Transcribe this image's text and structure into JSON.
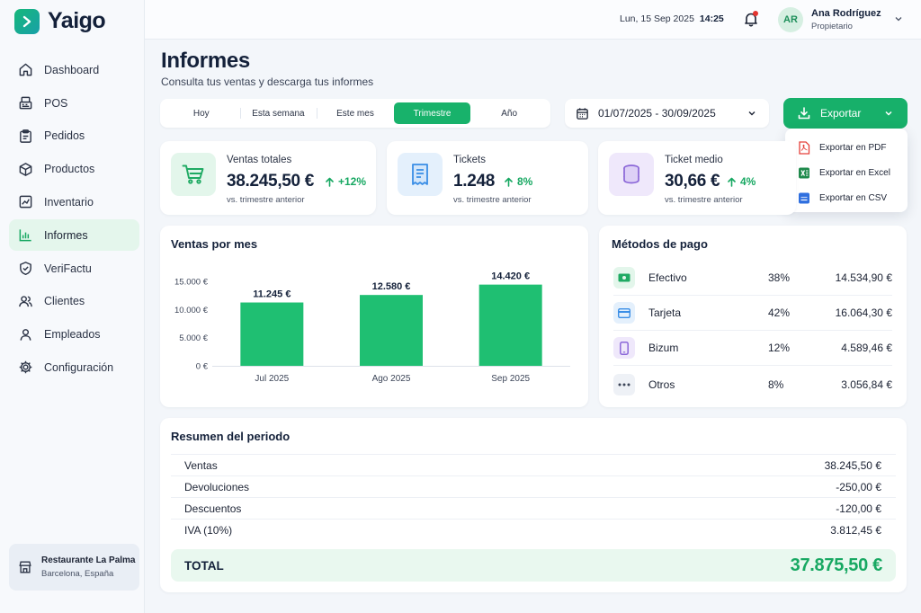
{
  "app": {
    "name": "Yaigo"
  },
  "sidebar": {
    "items": [
      {
        "label": "Dashboard",
        "icon": "home-icon"
      },
      {
        "label": "POS",
        "icon": "register-icon"
      },
      {
        "label": "Pedidos",
        "icon": "clipboard-icon"
      },
      {
        "label": "Productos",
        "icon": "box-icon"
      },
      {
        "label": "Inventario",
        "icon": "inventory-icon"
      },
      {
        "label": "Informes",
        "icon": "chart-icon",
        "active": true
      },
      {
        "label": "VeriFactu",
        "icon": "shield-check-icon"
      },
      {
        "label": "Clientes",
        "icon": "users-icon"
      },
      {
        "label": "Empleados",
        "icon": "user-icon"
      },
      {
        "label": "Configuración",
        "icon": "gear-icon"
      }
    ],
    "store": {
      "name": "Restaurante La Palma",
      "location": "Barcelona, España"
    }
  },
  "topbar": {
    "date": "Lun, 15 Sep 2025",
    "time": "14:25",
    "user": {
      "initials": "AR",
      "name": "Ana Rodríguez",
      "role": "Propietario"
    }
  },
  "header": {
    "title": "Informes",
    "subtitle": "Consulta tus ventas y descarga tus informes"
  },
  "periods": {
    "items": [
      "Hoy",
      "Esta semana",
      "Este mes",
      "Trimestre",
      "Año"
    ],
    "active": "Trimestre"
  },
  "date_range": "01/07/2025 - 30/09/2025",
  "export": {
    "label": "Exportar",
    "options": [
      {
        "label": "Exportar en PDF",
        "icon": "pdf-icon",
        "color": "#e5403a"
      },
      {
        "label": "Exportar en Excel",
        "icon": "excel-icon",
        "color": "#1f8a4c"
      },
      {
        "label": "Exportar en CSV",
        "icon": "csv-icon",
        "color": "#2f6fdf"
      }
    ]
  },
  "kpis": [
    {
      "label": "Ventas totales",
      "value": "38.245,50 €",
      "change": "+12%",
      "sub": "vs. trimestre anterior",
      "icon": "cart-icon",
      "color": "#1faa63"
    },
    {
      "label": "Tickets",
      "value": "1.248",
      "change": "8%",
      "sub": "vs. trimestre anterior",
      "icon": "receipt-icon",
      "color": "#3a8ee6"
    },
    {
      "label": "Ticket medio",
      "value": "30,66 €",
      "change": "4%",
      "sub": "vs. trimestre anterior",
      "icon": "coins-icon",
      "color": "#8b67d8"
    }
  ],
  "sales_chart": {
    "title": "Ventas por mes"
  },
  "chart_data": {
    "type": "bar",
    "categories": [
      "Jul 2025",
      "Ago 2025",
      "Sep 2025"
    ],
    "values": [
      11245,
      12580,
      14420
    ],
    "data_labels": [
      "11.245 €",
      "12.580 €",
      "14.420 €"
    ],
    "yticks": [
      0,
      5000,
      10000,
      15000
    ],
    "ytick_labels": [
      "0 €",
      "5.000 €",
      "10.000 €",
      "15.000 €"
    ],
    "ylim": [
      0,
      15000
    ],
    "grid": false,
    "color": "#1fbf72"
  },
  "payments": {
    "title": "Métodos de pago",
    "rows": [
      {
        "name": "Efectivo",
        "pct": "38%",
        "amount": "14.534,90 €",
        "icon": "cash-icon",
        "color": "#1faa63"
      },
      {
        "name": "Tarjeta",
        "pct": "42%",
        "amount": "16.064,30 €",
        "icon": "card-icon",
        "color": "#3a8ee6"
      },
      {
        "name": "Bizum",
        "pct": "12%",
        "amount": "4.589,46 €",
        "icon": "phone-icon",
        "color": "#8b67d8"
      },
      {
        "name": "Otros",
        "pct": "8%",
        "amount": "3.056,84 €",
        "icon": "more-icon",
        "color": "#3c4558"
      }
    ]
  },
  "summary": {
    "title": "Resumen del periodo",
    "rows": [
      {
        "label": "Ventas",
        "value": "38.245,50 €"
      },
      {
        "label": "Devoluciones",
        "value": "-250,00 €"
      },
      {
        "label": "Descuentos",
        "value": "-120,00 €"
      },
      {
        "label": "IVA (10%)",
        "value": "3.812,45 €"
      }
    ],
    "total_label": "TOTAL",
    "total_value": "37.875,50 €"
  }
}
